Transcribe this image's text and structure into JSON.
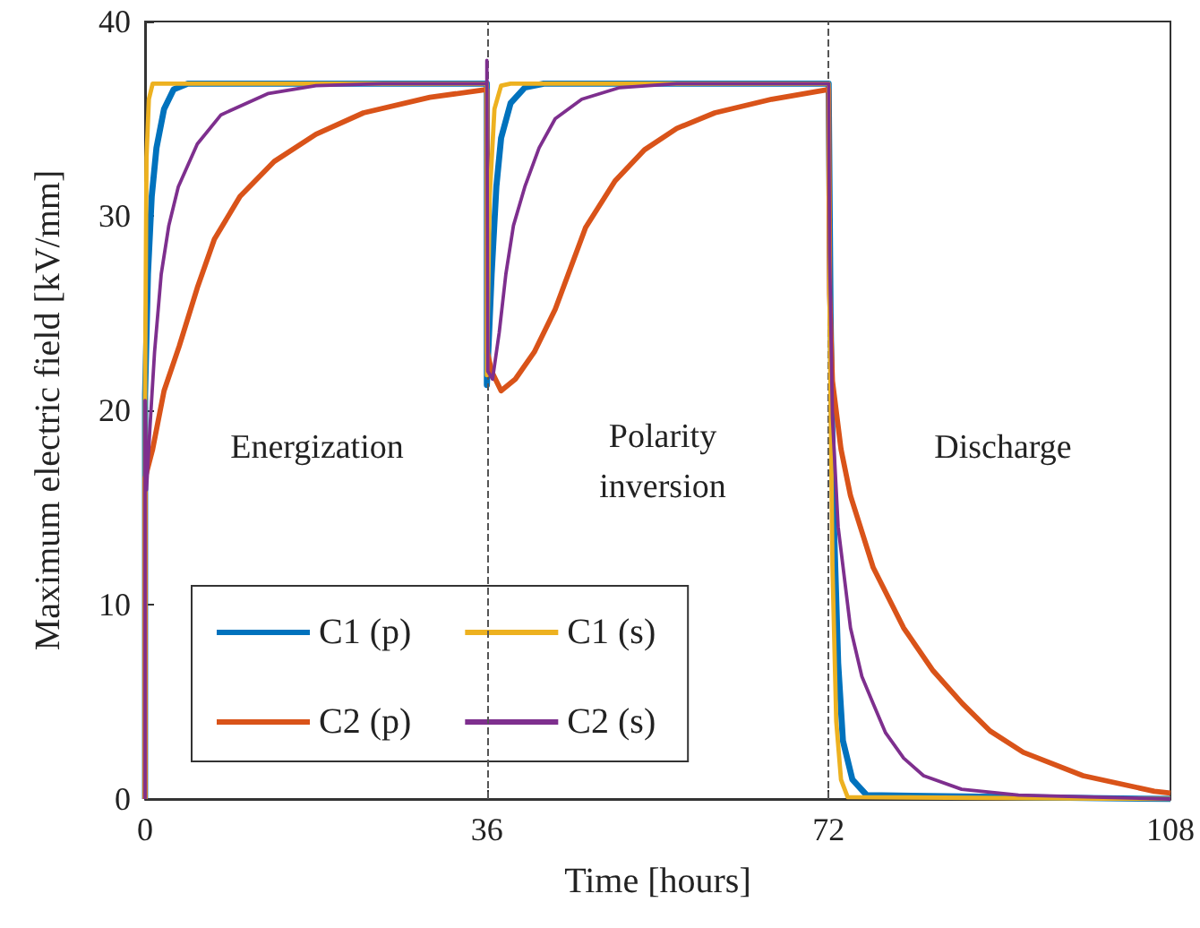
{
  "chart_data": {
    "type": "line",
    "xlabel": "Time [hours]",
    "ylabel": "Maximum electric field [kV/mm]",
    "xlim": [
      0,
      108
    ],
    "xticks": [
      0,
      36,
      72,
      108
    ],
    "ylim": [
      0,
      40
    ],
    "yticks": [
      0,
      10,
      20,
      30,
      40
    ],
    "grid": false,
    "legend": "bottom left",
    "marker": "none",
    "line_style": "solid",
    "ref_lines": [
      {
        "axis": "x",
        "value": 36,
        "color": "#555555",
        "line_style": "dashed"
      },
      {
        "axis": "x",
        "value": 72,
        "color": "#555555",
        "line_style": "dashed"
      }
    ],
    "annotations": [
      "Energization",
      "Polarity\ninversion",
      "Discharge"
    ],
    "series": [
      {
        "name": "C1 (p)",
        "color": "#0072bd",
        "x": [
          0,
          0,
          0.3,
          0.7,
          1.2,
          2,
          3,
          4.5,
          36,
          36,
          36.5,
          37,
          37.5,
          38.5,
          40,
          42,
          72,
          72.2,
          72.5,
          73,
          73.5,
          74.5,
          76,
          108
        ],
        "values": [
          0,
          20.8,
          27,
          31,
          33.5,
          35.5,
          36.5,
          36.8,
          36.8,
          21.3,
          27,
          31.5,
          34,
          35.8,
          36.6,
          36.8,
          36.8,
          25,
          15,
          7,
          3,
          1,
          0.2,
          0
        ]
      },
      {
        "name": "C2 (p)",
        "color": "#d95319",
        "x": [
          0,
          0,
          0.8,
          2,
          3.6,
          5.5,
          7.3,
          10,
          13.6,
          18,
          23,
          30,
          36,
          36.05,
          36.5,
          37.5,
          39,
          41,
          43.2,
          46.4,
          49.5,
          52.6,
          56,
          60,
          66,
          72,
          72.1,
          72.4,
          73.3,
          74.3,
          76.7,
          79.9,
          83,
          86.1,
          89,
          92.5,
          98.8,
          106.3,
          108
        ],
        "values": [
          0,
          16.5,
          18,
          21,
          23.3,
          26.3,
          28.8,
          31,
          32.8,
          34.2,
          35.3,
          36.1,
          36.5,
          23,
          22,
          21,
          21.6,
          23,
          25.2,
          29.4,
          31.8,
          33.4,
          34.5,
          35.3,
          36,
          36.5,
          26,
          21.5,
          18,
          15.6,
          11.9,
          8.8,
          6.6,
          4.9,
          3.5,
          2.4,
          1.2,
          0.4,
          0.3
        ]
      },
      {
        "name": "C1 (s)",
        "color": "#edb120",
        "x": [
          0,
          0,
          0.15,
          0.4,
          0.8,
          36,
          36,
          36.3,
          36.8,
          37.5,
          38.5,
          72,
          72.1,
          72.4,
          72.8,
          73.3,
          74,
          108
        ],
        "values": [
          0,
          20.8,
          33,
          36,
          36.8,
          36.8,
          21.8,
          31,
          35.5,
          36.7,
          36.8,
          36.8,
          25,
          12,
          4,
          1,
          0.1,
          0
        ]
      },
      {
        "name": "C2 (s)",
        "color": "#7e2f8e",
        "x": [
          0,
          0,
          0.15,
          0.5,
          1,
          1.7,
          2.5,
          3.5,
          5.5,
          8,
          13,
          18,
          25,
          36,
          36,
          36.1,
          36.6,
          37.3,
          38,
          38.8,
          40,
          41.5,
          43.2,
          46,
          50,
          56,
          72,
          72.1,
          72.4,
          73,
          74.3,
          75.5,
          76.7,
          78,
          79.9,
          82,
          86,
          92,
          100,
          108
        ],
        "values": [
          0,
          20.5,
          15.9,
          19,
          23,
          27,
          29.5,
          31.5,
          33.7,
          35.2,
          36.3,
          36.7,
          36.8,
          36.8,
          38,
          22,
          21.6,
          24,
          27,
          29.5,
          31.5,
          33.5,
          35,
          36,
          36.6,
          36.8,
          36.8,
          28,
          19.6,
          14,
          8.8,
          6.3,
          4.9,
          3.4,
          2.1,
          1.2,
          0.5,
          0.2,
          0.1,
          0
        ]
      }
    ]
  }
}
